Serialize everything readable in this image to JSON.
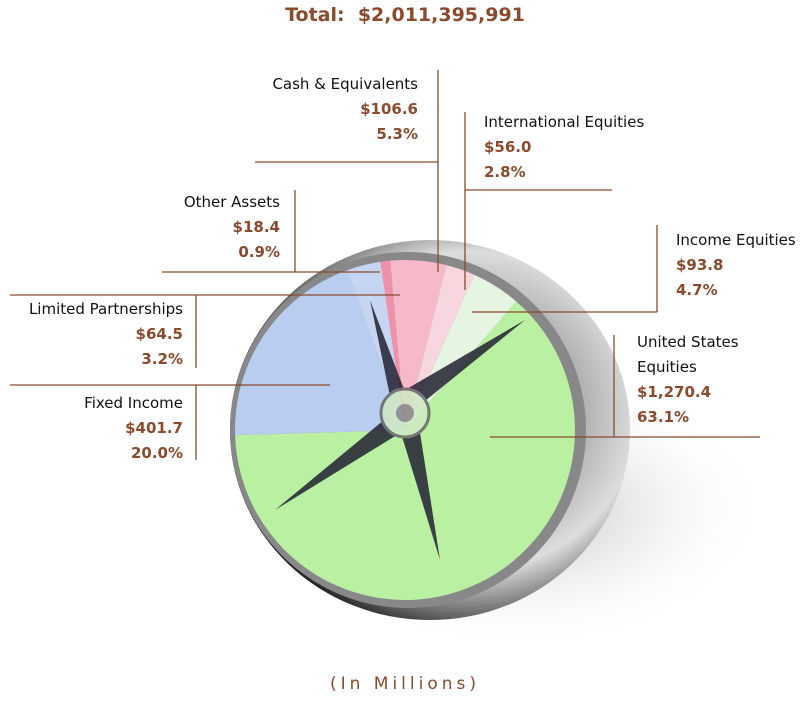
{
  "chart_data": {
    "type": "pie",
    "title": "Total:  $2,011,395,991",
    "subtitle": "(In Millions)",
    "categories": [
      "Cash & Equivalents",
      "International Equities",
      "Income Equities",
      "United States Equities",
      "Fixed Income",
      "Limited Partnerships",
      "Other Assets"
    ],
    "values": [
      106.6,
      56.0,
      93.8,
      1270.4,
      401.7,
      64.5,
      18.4
    ],
    "value_labels": [
      "$106.6",
      "$56.0",
      "$93.8",
      "$1,270.4",
      "$401.7",
      "$64.5",
      "$18.4"
    ],
    "shares": [
      5.3,
      2.8,
      4.7,
      63.1,
      20.0,
      3.2,
      0.9
    ],
    "share_labels": [
      "5.3%",
      "2.8%",
      "4.7%",
      "63.1%",
      "20.0%",
      "3.2%",
      "0.9%"
    ],
    "colors": [
      "#f5b9ca",
      "#f7d6df",
      "#e6f4e2",
      "#b9f0a2",
      "#b8cdf0",
      "#c6d5f2",
      "#f090aa"
    ]
  }
}
